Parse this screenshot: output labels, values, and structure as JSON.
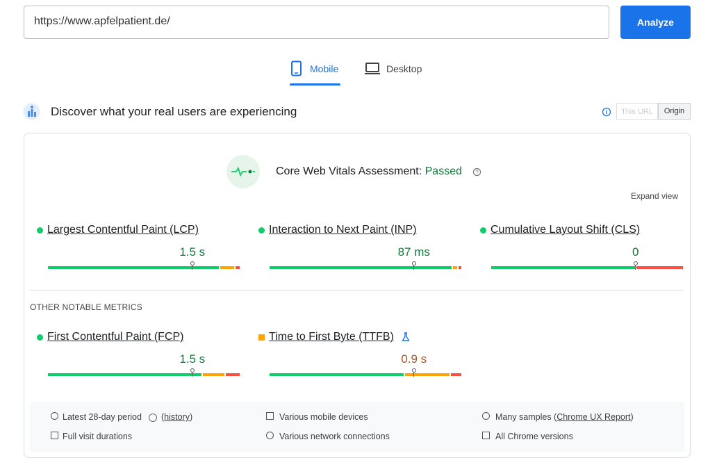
{
  "search": {
    "url": "https://www.apfelpatient.de/",
    "button": "Analyze"
  },
  "tabs": [
    "Mobile",
    "Desktop"
  ],
  "field": {
    "title": "Discover what your real users are experiencing",
    "toggle": [
      "This URL",
      "Origin"
    ],
    "assessment": {
      "label": "Core Web Vitals Assessment:",
      "status": "Passed"
    },
    "expand": "Expand view",
    "core_metrics": [
      {
        "name": "Largest Contentful Paint (LCP)",
        "value": "1.5 s",
        "color": "#0d7c39",
        "rating_color": "#0cce6b",
        "distribution": [
          89,
          8,
          3
        ]
      },
      {
        "name": "Interaction to Next Paint (INP)",
        "value": "87 ms",
        "color": "#0d7c39",
        "rating_color": "#0cce6b",
        "distribution": [
          95,
          3,
          2
        ]
      },
      {
        "name": "Cumulative Layout Shift (CLS)",
        "value": "0",
        "color": "#0d7c39",
        "rating_color": "#0cce6b",
        "distribution": [
          75,
          0,
          25
        ]
      }
    ],
    "other_heading": "OTHER NOTABLE METRICS",
    "other_metrics": [
      {
        "name": "First Contentful Paint (FCP)",
        "value": "1.5 s",
        "color": "#0d7c39",
        "rating_color": "#0cce6b",
        "distribution": [
          80,
          12,
          8
        ]
      },
      {
        "name": "Time to First Byte (TTFB)",
        "value": "0.9 s",
        "color": "#b3541e",
        "rating_color": "#ffa400",
        "distribution": [
          70,
          24,
          6
        ]
      }
    ],
    "footer": [
      [
        {
          "text": "Latest 28-day period"
        },
        {
          "text": "("
        },
        {
          "text": "history",
          "link": true
        },
        {
          "text": ")"
        }
      ],
      [
        {
          "text": "Various mobile devices"
        }
      ],
      [
        {
          "text": "Many samples ("
        },
        {
          "text": "Chrome UX Report",
          "link": true
        },
        {
          "text": ")"
        }
      ],
      [
        {
          "text": "Full visit durations"
        }
      ],
      [
        {
          "text": "Various network connections"
        }
      ],
      [
        {
          "text": "All Chrome versions"
        }
      ]
    ]
  }
}
